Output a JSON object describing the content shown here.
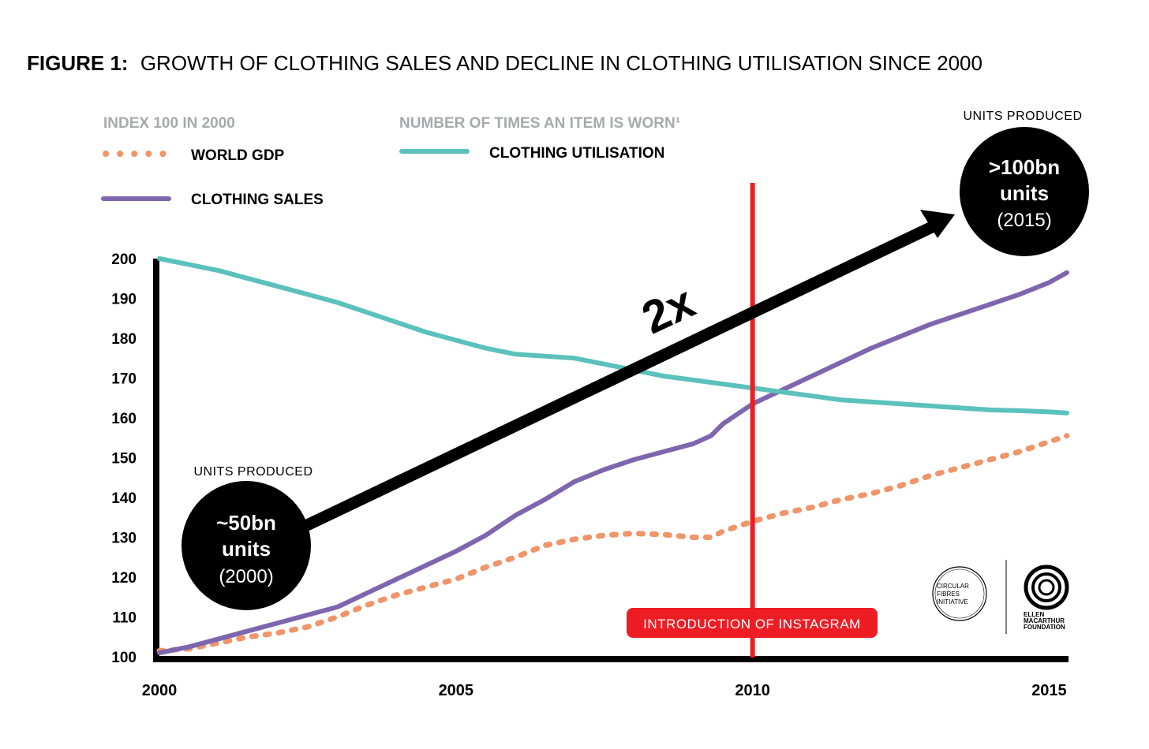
{
  "colors": {
    "gdp": "#F0956A",
    "sales": "#7E66AE",
    "utilisation": "#5BC1BC",
    "axis": "#000000",
    "instagram": "#EE1C23",
    "legend_heading": "#A7A9AC"
  },
  "chart_data": {
    "type": "line",
    "title_bold": "FIGURE 1:",
    "title_rest": "GROWTH OF CLOTHING SALES AND DECLINE IN CLOTHING UTILISATION SINCE 2000",
    "legend_left_heading": "INDEX 100 IN 2000",
    "legend_right_heading": "NUMBER OF TIMES AN ITEM IS WORN¹",
    "xlim": [
      2000,
      2015.3
    ],
    "ylim": [
      100,
      200
    ],
    "x_ticks": [
      "2000",
      "2005",
      "2010",
      "2015"
    ],
    "x_tick_values": [
      2000,
      2005,
      2010,
      2015
    ],
    "y_ticks": [
      "200",
      "190",
      "180",
      "170",
      "160",
      "150",
      "140",
      "130",
      "120",
      "110",
      "100"
    ],
    "y_tick_values": [
      200,
      190,
      180,
      170,
      160,
      150,
      140,
      130,
      120,
      110,
      100
    ],
    "series": [
      {
        "key": "gdp",
        "name": "WORLD GDP",
        "style": "dotted",
        "x": [
          2000,
          2000.5,
          2001,
          2001.5,
          2002,
          2002.5,
          2003,
          2003.5,
          2004,
          2004.5,
          2005,
          2005.5,
          2006,
          2006.5,
          2007,
          2007.5,
          2008,
          2008.5,
          2009,
          2009.3,
          2009.5,
          2010,
          2010.5,
          2011,
          2011.5,
          2012,
          2012.5,
          2013,
          2013.5,
          2014,
          2014.5,
          2015,
          2015.3
        ],
        "values": [
          101.5,
          102,
          103.5,
          105,
          106,
          107.5,
          110,
          113,
          115.5,
          117.5,
          119.5,
          122.5,
          125,
          128,
          129.5,
          130.5,
          131,
          130.7,
          130,
          130,
          131.5,
          134,
          136,
          137.5,
          139.5,
          141,
          143,
          145.5,
          147.5,
          149.5,
          151.5,
          154,
          155.5
        ]
      },
      {
        "key": "sales",
        "name": "CLOTHING SALES",
        "style": "solid",
        "x": [
          2000,
          2000.5,
          2001,
          2001.5,
          2002,
          2002.5,
          2003,
          2003.5,
          2004,
          2004.5,
          2005,
          2005.5,
          2006,
          2006.5,
          2007,
          2007.5,
          2008,
          2008.5,
          2009,
          2009.3,
          2009.5,
          2010,
          2010.5,
          2011,
          2011.5,
          2012,
          2012.5,
          2013,
          2013.5,
          2014,
          2014.5,
          2015,
          2015.3
        ],
        "values": [
          101,
          102.5,
          104.5,
          106.5,
          108.5,
          110.5,
          112.5,
          116,
          119.5,
          123,
          126.5,
          130.5,
          135.5,
          139.5,
          144,
          147,
          149.5,
          151.5,
          153.5,
          155.5,
          158.5,
          163.5,
          167,
          170.5,
          174,
          177.5,
          180.5,
          183.5,
          186,
          188.5,
          191,
          194,
          196.5
        ]
      },
      {
        "key": "utilisation",
        "name": "CLOTHING UTILISATION",
        "style": "solid",
        "x": [
          2000,
          2000.5,
          2001,
          2001.5,
          2002,
          2002.5,
          2003,
          2003.5,
          2004,
          2004.5,
          2005,
          2005.5,
          2006,
          2006.5,
          2007,
          2007.5,
          2008,
          2008.5,
          2009,
          2009.5,
          2010,
          2010.5,
          2011,
          2011.5,
          2012,
          2012.5,
          2013,
          2013.5,
          2014,
          2014.5,
          2015,
          2015.3
        ],
        "values": [
          200,
          198.5,
          197,
          195,
          193,
          191,
          189,
          186.5,
          184,
          181.5,
          179.5,
          177.5,
          176,
          175.5,
          175,
          173.5,
          172,
          170.5,
          169.5,
          168.5,
          167.5,
          166.5,
          165.5,
          164.5,
          164,
          163.5,
          163,
          162.5,
          162,
          161.8,
          161.5,
          161.2
        ]
      }
    ],
    "annotations": {
      "instagram_year": 2010,
      "instagram_label": "INTRODUCTION OF INSTAGRAM",
      "arrow_label": "2x",
      "start_caption": "UNITS PRODUCED",
      "start_line1": "~50bn",
      "start_line2": "units",
      "start_line3": "(2000)",
      "end_caption": "UNITS PRODUCED",
      "end_line1": ">100bn",
      "end_line2": "units",
      "end_line3": "(2015)"
    },
    "logos": {
      "cfi_line1": "CIRCULAR",
      "cfi_line2": "FIBRES",
      "cfi_line3": "INITIATIVE",
      "emf_line1": "ELLEN",
      "emf_line2": "MACARTHUR",
      "emf_line3": "FOUNDATION"
    }
  }
}
